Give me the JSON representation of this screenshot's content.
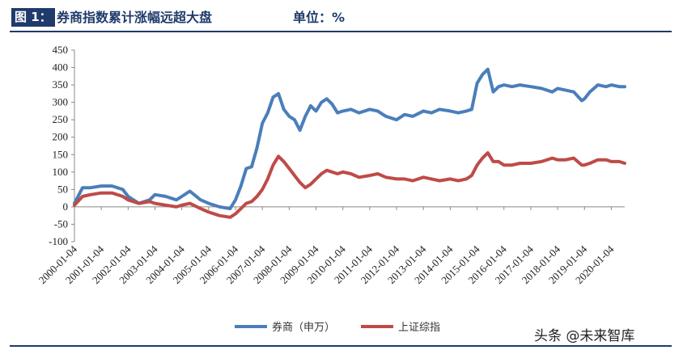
{
  "header": {
    "figure_label": "图 1：",
    "title": "券商指数累计涨幅远超大盘",
    "unit": "单位：%"
  },
  "watermark": "头条 @未来智库",
  "colors": {
    "header": "#1f3a6b",
    "series_broker": "#4a7ebb",
    "series_sse": "#be4b48"
  },
  "chart_data": {
    "type": "line",
    "title": "券商指数累计涨幅远超大盘",
    "xlabel": "",
    "ylabel": "",
    "ylim": [
      -100,
      450
    ],
    "yticks": [
      -100,
      -50,
      0,
      50,
      100,
      150,
      200,
      250,
      300,
      350,
      400,
      450
    ],
    "x_tick_labels": [
      "2000-01-04",
      "2001-01-04",
      "2002-01-04",
      "2003-01-04",
      "2004-01-04",
      "2005-01-04",
      "2006-01-04",
      "2007-01-04",
      "2008-01-04",
      "2009-01-04",
      "2010-01-04",
      "2011-01-04",
      "2012-01-04",
      "2013-01-04",
      "2014-01-04",
      "2015-01-04",
      "2016-01-04",
      "2017-01-04",
      "2018-01-04",
      "2019-01-04",
      "2020-01-04"
    ],
    "legend_position": "bottom",
    "grid": false,
    "series": [
      {
        "name": "券商（申万）",
        "color": "#4a7ebb",
        "x": [
          2000.0,
          2000.3,
          2000.6,
          2001.0,
          2001.4,
          2001.8,
          2002.0,
          2002.4,
          2002.8,
          2003.0,
          2003.4,
          2003.8,
          2004.0,
          2004.3,
          2004.7,
          2005.0,
          2005.4,
          2005.8,
          2006.0,
          2006.2,
          2006.4,
          2006.6,
          2006.8,
          2007.0,
          2007.2,
          2007.4,
          2007.6,
          2007.8,
          2008.0,
          2008.2,
          2008.4,
          2008.6,
          2008.8,
          2009.0,
          2009.2,
          2009.4,
          2009.6,
          2009.8,
          2010.0,
          2010.3,
          2010.6,
          2011.0,
          2011.3,
          2011.6,
          2012.0,
          2012.3,
          2012.6,
          2013.0,
          2013.3,
          2013.6,
          2014.0,
          2014.3,
          2014.6,
          2014.8,
          2015.0,
          2015.2,
          2015.4,
          2015.6,
          2015.8,
          2016.0,
          2016.3,
          2016.6,
          2017.0,
          2017.4,
          2017.8,
          2018.0,
          2018.3,
          2018.6,
          2018.9,
          2019.0,
          2019.2,
          2019.5,
          2019.8,
          2020.0,
          2020.3,
          2020.5
        ],
        "y": [
          10,
          55,
          55,
          60,
          60,
          50,
          30,
          10,
          20,
          35,
          30,
          20,
          30,
          45,
          20,
          10,
          0,
          -5,
          20,
          60,
          110,
          115,
          170,
          240,
          270,
          315,
          325,
          280,
          260,
          250,
          220,
          260,
          290,
          275,
          300,
          310,
          295,
          270,
          275,
          280,
          270,
          280,
          275,
          260,
          250,
          265,
          260,
          275,
          270,
          280,
          275,
          270,
          275,
          280,
          355,
          380,
          395,
          330,
          345,
          350,
          345,
          350,
          345,
          340,
          330,
          340,
          335,
          330,
          305,
          310,
          330,
          350,
          345,
          350,
          345,
          345
        ]
      },
      {
        "name": "上证综指",
        "color": "#be4b48",
        "x": [
          2000.0,
          2000.3,
          2000.6,
          2001.0,
          2001.4,
          2001.8,
          2002.0,
          2002.4,
          2002.8,
          2003.0,
          2003.4,
          2003.8,
          2004.0,
          2004.3,
          2004.7,
          2005.0,
          2005.4,
          2005.8,
          2006.0,
          2006.2,
          2006.4,
          2006.6,
          2006.8,
          2007.0,
          2007.2,
          2007.4,
          2007.6,
          2007.8,
          2008.0,
          2008.2,
          2008.4,
          2008.6,
          2008.8,
          2009.0,
          2009.2,
          2009.4,
          2009.6,
          2009.8,
          2010.0,
          2010.3,
          2010.6,
          2011.0,
          2011.3,
          2011.6,
          2012.0,
          2012.3,
          2012.6,
          2013.0,
          2013.3,
          2013.6,
          2014.0,
          2014.3,
          2014.6,
          2014.8,
          2015.0,
          2015.2,
          2015.4,
          2015.6,
          2015.8,
          2016.0,
          2016.3,
          2016.6,
          2017.0,
          2017.4,
          2017.8,
          2018.0,
          2018.3,
          2018.6,
          2018.9,
          2019.0,
          2019.2,
          2019.5,
          2019.8,
          2020.0,
          2020.3,
          2020.5
        ],
        "y": [
          5,
          30,
          35,
          40,
          40,
          30,
          20,
          10,
          15,
          10,
          5,
          0,
          5,
          10,
          -5,
          -15,
          -25,
          -30,
          -20,
          -5,
          10,
          15,
          30,
          50,
          80,
          120,
          145,
          130,
          110,
          90,
          70,
          55,
          65,
          80,
          95,
          105,
          100,
          95,
          100,
          95,
          85,
          90,
          95,
          85,
          80,
          80,
          75,
          85,
          80,
          75,
          80,
          75,
          80,
          90,
          120,
          140,
          155,
          130,
          130,
          120,
          120,
          125,
          125,
          130,
          140,
          135,
          135,
          140,
          120,
          120,
          125,
          135,
          135,
          130,
          130,
          125
        ]
      }
    ]
  }
}
